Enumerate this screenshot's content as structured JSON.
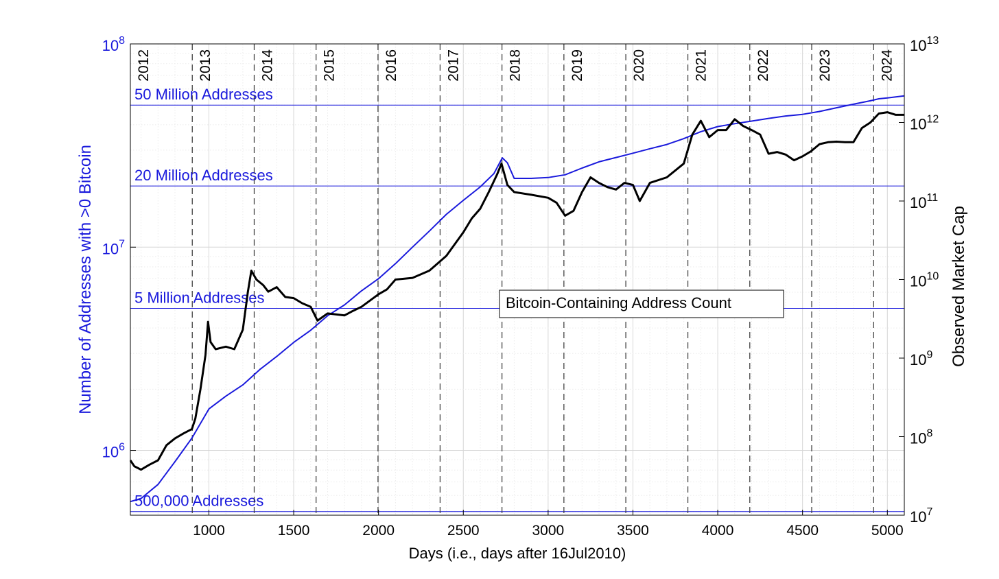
{
  "chart_data": {
    "type": "line",
    "xlabel": "Days (i.e., days after 16Jul2010)",
    "ylabel_left": "Number of Addresses with >0 Bitcoin",
    "ylabel_right": "Observed Market Cap",
    "xlim": [
      537,
      5100
    ],
    "ylim_left": [
      480000,
      100000000
    ],
    "ylim_right": [
      10000000,
      10000000000000
    ],
    "yscale_left": "log",
    "yscale_right": "log",
    "grid": true,
    "x_ticks": [
      1000,
      1500,
      2000,
      2500,
      3000,
      3500,
      4000,
      4500,
      5000
    ],
    "y_left_ticks": [
      {
        "value": 1000000,
        "base": "10",
        "exp": "6"
      },
      {
        "value": 10000000,
        "base": "10",
        "exp": "7"
      },
      {
        "value": 100000000,
        "base": "10",
        "exp": "8"
      }
    ],
    "y_right_ticks": [
      {
        "value": 10000000,
        "base": "10",
        "exp": "7"
      },
      {
        "value": 100000000,
        "base": "10",
        "exp": "8"
      },
      {
        "value": 1000000000,
        "base": "10",
        "exp": "9"
      },
      {
        "value": 10000000000,
        "base": "10",
        "exp": "10"
      },
      {
        "value": 100000000000,
        "base": "10",
        "exp": "11"
      },
      {
        "value": 1000000000000,
        "base": "10",
        "exp": "12"
      },
      {
        "value": 10000000000000,
        "base": "10",
        "exp": "13"
      }
    ],
    "year_lines": [
      {
        "x": 536,
        "label": "2012",
        "line": false
      },
      {
        "x": 902,
        "label": "2013",
        "line": true
      },
      {
        "x": 1267,
        "label": "2014",
        "line": true
      },
      {
        "x": 1632,
        "label": "2015",
        "line": true
      },
      {
        "x": 1997,
        "label": "2016",
        "line": true
      },
      {
        "x": 2363,
        "label": "2017",
        "line": true
      },
      {
        "x": 2728,
        "label": "2018",
        "line": true
      },
      {
        "x": 3093,
        "label": "2019",
        "line": true
      },
      {
        "x": 3458,
        "label": "2020",
        "line": true
      },
      {
        "x": 3824,
        "label": "2021",
        "line": true
      },
      {
        "x": 4189,
        "label": "2022",
        "line": true
      },
      {
        "x": 4554,
        "label": "2023",
        "line": true
      },
      {
        "x": 4919,
        "label": "2024",
        "line": true
      }
    ],
    "reference_lines": [
      {
        "value": 50000000,
        "label": "50 Million Addresses"
      },
      {
        "value": 20000000,
        "label": "20 Million Addresses"
      },
      {
        "value": 5000000,
        "label": "5 Million Addresses"
      },
      {
        "value": 500000,
        "label": "500,000 Addresses"
      }
    ],
    "annotation": "Bitcoin-Containing Address Count",
    "series": [
      {
        "name": "Bitcoin-Containing Address Count",
        "axis": "left",
        "color": "#1a1adc",
        "points": [
          [
            537,
            560000
          ],
          [
            600,
            580000
          ],
          [
            700,
            680000
          ],
          [
            800,
            880000
          ],
          [
            900,
            1150000
          ],
          [
            1000,
            1600000
          ],
          [
            1100,
            1850000
          ],
          [
            1200,
            2100000
          ],
          [
            1300,
            2500000
          ],
          [
            1400,
            2900000
          ],
          [
            1500,
            3400000
          ],
          [
            1600,
            3900000
          ],
          [
            1700,
            4600000
          ],
          [
            1800,
            5200000
          ],
          [
            1900,
            6100000
          ],
          [
            2000,
            7000000
          ],
          [
            2100,
            8300000
          ],
          [
            2200,
            10000000
          ],
          [
            2300,
            12000000
          ],
          [
            2400,
            14500000
          ],
          [
            2500,
            17000000
          ],
          [
            2600,
            19800000
          ],
          [
            2680,
            23000000
          ],
          [
            2730,
            27500000
          ],
          [
            2760,
            26000000
          ],
          [
            2800,
            21800000
          ],
          [
            2900,
            21800000
          ],
          [
            3000,
            22000000
          ],
          [
            3100,
            22700000
          ],
          [
            3200,
            24500000
          ],
          [
            3300,
            26300000
          ],
          [
            3400,
            27600000
          ],
          [
            3500,
            29000000
          ],
          [
            3600,
            30500000
          ],
          [
            3700,
            32000000
          ],
          [
            3800,
            34200000
          ],
          [
            3900,
            37000000
          ],
          [
            4000,
            39200000
          ],
          [
            4100,
            40500000
          ],
          [
            4200,
            41700000
          ],
          [
            4300,
            43000000
          ],
          [
            4400,
            44200000
          ],
          [
            4500,
            45000000
          ],
          [
            4600,
            46500000
          ],
          [
            4700,
            48500000
          ],
          [
            4800,
            50500000
          ],
          [
            4900,
            52500000
          ],
          [
            4950,
            53700000
          ],
          [
            5000,
            54200000
          ],
          [
            5100,
            55500000
          ]
        ]
      },
      {
        "name": "Observed Market Cap",
        "axis": "right",
        "color": "#000000",
        "points": [
          [
            537,
            50000000
          ],
          [
            560,
            42000000
          ],
          [
            600,
            38000000
          ],
          [
            650,
            44000000
          ],
          [
            700,
            50000000
          ],
          [
            750,
            78000000
          ],
          [
            800,
            95000000
          ],
          [
            850,
            110000000
          ],
          [
            900,
            125000000
          ],
          [
            920,
            170000000
          ],
          [
            950,
            400000000
          ],
          [
            980,
            1100000000
          ],
          [
            995,
            2900000000
          ],
          [
            1010,
            1600000000
          ],
          [
            1040,
            1300000000
          ],
          [
            1100,
            1400000000
          ],
          [
            1150,
            1300000000
          ],
          [
            1200,
            2300000000
          ],
          [
            1230,
            7000000000
          ],
          [
            1250,
            13000000000
          ],
          [
            1280,
            10000000000
          ],
          [
            1320,
            8500000000
          ],
          [
            1350,
            7000000000
          ],
          [
            1400,
            8000000000
          ],
          [
            1450,
            6000000000
          ],
          [
            1500,
            5800000000
          ],
          [
            1550,
            5000000000
          ],
          [
            1600,
            4500000000
          ],
          [
            1640,
            3000000000
          ],
          [
            1700,
            3700000000
          ],
          [
            1800,
            3500000000
          ],
          [
            1850,
            4000000000
          ],
          [
            1900,
            4500000000
          ],
          [
            2000,
            6500000000
          ],
          [
            2050,
            7500000000
          ],
          [
            2100,
            10000000000
          ],
          [
            2200,
            10500000000
          ],
          [
            2300,
            13000000000
          ],
          [
            2400,
            20000000000
          ],
          [
            2500,
            40000000000
          ],
          [
            2550,
            60000000000
          ],
          [
            2600,
            80000000000
          ],
          [
            2650,
            130000000000
          ],
          [
            2700,
            220000000000
          ],
          [
            2725,
            300000000000
          ],
          [
            2760,
            160000000000
          ],
          [
            2800,
            130000000000
          ],
          [
            2900,
            120000000000
          ],
          [
            3000,
            110000000000
          ],
          [
            3050,
            95000000000
          ],
          [
            3100,
            65000000000
          ],
          [
            3150,
            75000000000
          ],
          [
            3200,
            130000000000
          ],
          [
            3250,
            200000000000
          ],
          [
            3300,
            170000000000
          ],
          [
            3350,
            150000000000
          ],
          [
            3400,
            140000000000
          ],
          [
            3450,
            170000000000
          ],
          [
            3500,
            160000000000
          ],
          [
            3540,
            100000000000
          ],
          [
            3600,
            170000000000
          ],
          [
            3700,
            200000000000
          ],
          [
            3800,
            300000000000
          ],
          [
            3850,
            700000000000
          ],
          [
            3900,
            1050000000000
          ],
          [
            3950,
            650000000000
          ],
          [
            4000,
            800000000000
          ],
          [
            4050,
            800000000000
          ],
          [
            4100,
            1100000000000
          ],
          [
            4150,
            900000000000
          ],
          [
            4200,
            800000000000
          ],
          [
            4250,
            700000000000
          ],
          [
            4300,
            400000000000
          ],
          [
            4350,
            420000000000
          ],
          [
            4400,
            390000000000
          ],
          [
            4450,
            330000000000
          ],
          [
            4500,
            370000000000
          ],
          [
            4550,
            430000000000
          ],
          [
            4600,
            530000000000
          ],
          [
            4650,
            560000000000
          ],
          [
            4700,
            570000000000
          ],
          [
            4750,
            560000000000
          ],
          [
            4800,
            560000000000
          ],
          [
            4850,
            850000000000
          ],
          [
            4900,
            1000000000000
          ],
          [
            4950,
            1300000000000
          ],
          [
            5000,
            1350000000000
          ],
          [
            5050,
            1250000000000
          ],
          [
            5100,
            1250000000000
          ]
        ]
      }
    ]
  }
}
